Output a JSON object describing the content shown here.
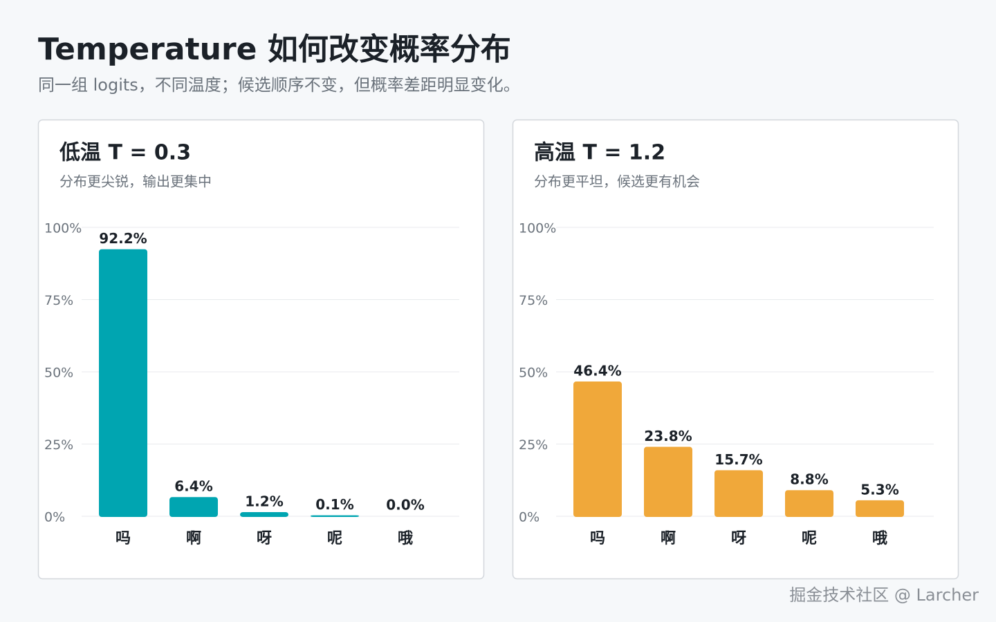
{
  "header": {
    "title": "Temperature 如何改变概率分布",
    "subtitle": "同一组 logits，不同温度；候选顺序不变，但概率差距明显变化。"
  },
  "watermark": "掘金技术社区 @ Larcher",
  "chart_data": [
    {
      "type": "bar",
      "title": "低温 T = 0.3",
      "subtitle": "分布更尖锐，输出更集中",
      "categories": [
        "吗",
        "啊",
        "呀",
        "呢",
        "哦"
      ],
      "values": [
        92.2,
        6.4,
        1.2,
        0.1,
        0.0
      ],
      "value_labels": [
        "92.2%",
        "6.4%",
        "1.2%",
        "0.1%",
        "0.0%"
      ],
      "color": "#00a5b1",
      "ylim": [
        0,
        100
      ],
      "yticks": [
        {
          "value": 0,
          "label": "0%"
        },
        {
          "value": 25,
          "label": "25%"
        },
        {
          "value": 50,
          "label": "50%"
        },
        {
          "value": 75,
          "label": "75%"
        },
        {
          "value": 100,
          "label": "100%"
        }
      ],
      "grid": true
    },
    {
      "type": "bar",
      "title": "高温 T = 1.2",
      "subtitle": "分布更平坦，候选更有机会",
      "categories": [
        "吗",
        "啊",
        "呀",
        "呢",
        "哦"
      ],
      "values": [
        46.4,
        23.8,
        15.7,
        8.8,
        5.3
      ],
      "value_labels": [
        "46.4%",
        "23.8%",
        "15.7%",
        "8.8%",
        "5.3%"
      ],
      "color": "#f0a83a",
      "ylim": [
        0,
        100
      ],
      "yticks": [
        {
          "value": 0,
          "label": "0%"
        },
        {
          "value": 25,
          "label": "25%"
        },
        {
          "value": 50,
          "label": "50%"
        },
        {
          "value": 75,
          "label": "75%"
        },
        {
          "value": 100,
          "label": "100%"
        }
      ],
      "grid": true
    }
  ]
}
